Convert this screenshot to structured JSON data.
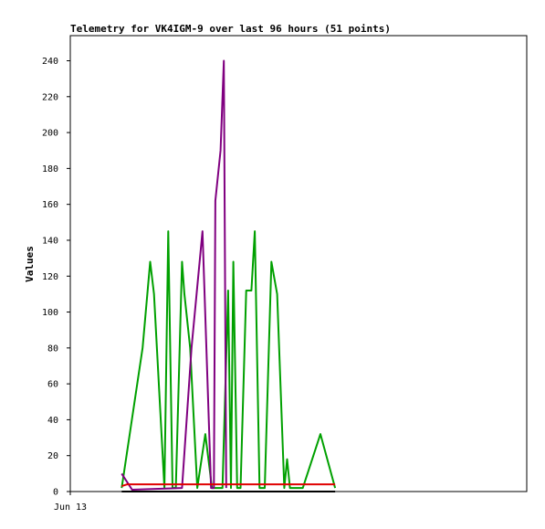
{
  "chart_data": {
    "type": "line",
    "title": "Telemetry for VK4IGM-9 over last 96 hours (51 points)",
    "ylabel": "Values",
    "xlabel": "",
    "xlim": [
      0,
      96
    ],
    "ylim": [
      0,
      254
    ],
    "yticks": [
      0,
      20,
      40,
      60,
      80,
      100,
      120,
      140,
      160,
      180,
      200,
      220,
      240
    ],
    "xticks": [
      {
        "x": 0,
        "label": "Jun 13"
      }
    ],
    "grid": false,
    "legend": "none",
    "series": [
      {
        "color": "#00a000",
        "x": [
          10.8,
          15.2,
          16.8,
          17.6,
          19.8,
          20.6,
          21.5,
          22.2,
          23.5,
          24.0,
          25.2,
          26.7,
          28.4,
          29.8,
          30.3,
          32.0,
          33.2,
          33.8,
          34.3,
          35.1,
          35.8,
          37.0,
          38.1,
          38.8,
          39.8,
          40.9,
          42.3,
          43.5,
          45.0,
          45.6,
          46.2,
          47.5,
          48.9,
          52.6,
          55.7
        ],
        "y": [
          2,
          80,
          128,
          110,
          2,
          145,
          2,
          2,
          128,
          110,
          80,
          2,
          32,
          2,
          2,
          2,
          112,
          2,
          128,
          2,
          2,
          112,
          112,
          145,
          2,
          2,
          128,
          110,
          2,
          18,
          2,
          2,
          2,
          32,
          2
        ]
      },
      {
        "color": "#800080",
        "x": [
          10.8,
          13.0,
          23.5,
          25.5,
          27.8,
          29.6,
          30.2,
          30.5,
          31.6,
          32.3,
          32.8
        ],
        "y": [
          10,
          1,
          2,
          80,
          145,
          2,
          2,
          162,
          190,
          240,
          2
        ]
      },
      {
        "color": "#e00000",
        "x": [
          10.8,
          12.0,
          55.7
        ],
        "y": [
          3,
          4,
          4
        ]
      },
      {
        "color": "#000000",
        "x": [
          10.8,
          55.7
        ],
        "y": [
          0,
          0
        ]
      }
    ]
  }
}
